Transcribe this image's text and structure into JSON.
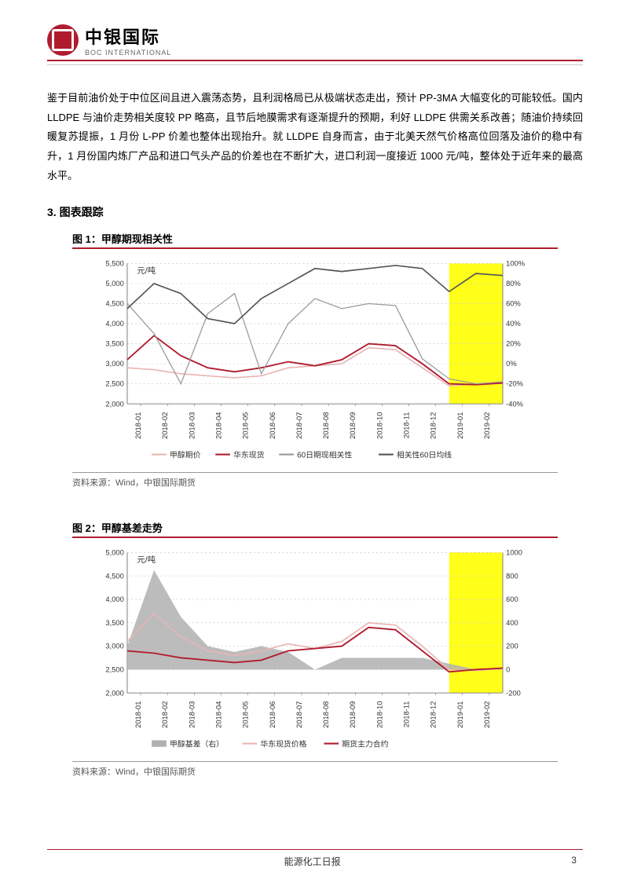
{
  "brand": {
    "name_cn": "中银国际",
    "name_en": "BOC INTERNATIONAL",
    "logo_color": "#b01c2e"
  },
  "paragraph": "鉴于目前油价处于中位区间且进入震荡态势，且利润格局已从极端状态走出，预计 PP-3MA 大幅变化的可能较低。国内 LLDPE 与油价走势相关度较 PP 略高，且节后地膜需求有逐渐提升的预期，利好 LLDPE 供需关系改善；随油价持续回暖复苏提振，1 月份 L-PP 价差也整体出现抬升。就 LLDPE 自身而言，由于北美天然气价格高位回落及油价的稳中有升，1 月份国内炼厂产品和进口气头产品的价差也在不断扩大，进口利润一度接近 1000 元/吨，整体处于近年来的最高水平。",
  "section_heading": "3.  图表跟踪",
  "source_text": "资料来源：Wind，中银国际期货",
  "footer": {
    "report_name": "能源化工日报",
    "page_number": "3"
  },
  "figure1": {
    "title": "图 1：甲醇期现相关性",
    "y_left_label": "元/吨",
    "y_left_ticks": [
      "5,500",
      "5,000",
      "4,500",
      "4,000",
      "3,500",
      "3,000",
      "2,500",
      "2,000"
    ],
    "y_left_min": 2000,
    "y_left_max": 5500,
    "y_right_ticks": [
      "100%",
      "80%",
      "60%",
      "40%",
      "20%",
      "0%",
      "-20%",
      "-40%"
    ],
    "y_right_min": -40,
    "y_right_max": 100,
    "x_labels": [
      "2018-01",
      "2018-02",
      "2018-03",
      "2018-04",
      "2018-05",
      "2018-06",
      "2018-07",
      "2018-08",
      "2018-09",
      "2018-10",
      "2018-11",
      "2018-12",
      "2019-01",
      "2019-02"
    ],
    "highlight_xstart": 12,
    "highlight_xend": 14,
    "highlight_color": "#ffff00",
    "grid_color": "#cccccc",
    "legend": [
      "甲醇期价",
      "华东现货",
      "60日期现相关性",
      "相关性60日均线"
    ],
    "series": {
      "futures": {
        "color": "#e8b5b5",
        "values": [
          2900,
          2850,
          2750,
          2700,
          2650,
          2700,
          2900,
          2950,
          3000,
          3400,
          3350,
          2900,
          2450,
          2500,
          2530
        ]
      },
      "spot": {
        "color": "#b01c2e",
        "values": [
          3100,
          3700,
          3200,
          2900,
          2800,
          2900,
          3050,
          2950,
          3100,
          3500,
          3450,
          3000,
          2500,
          2480,
          2520
        ]
      },
      "corr60": {
        "color": "#999999",
        "values": [
          60,
          30,
          -20,
          50,
          70,
          -10,
          40,
          65,
          55,
          60,
          58,
          5,
          -15,
          -20,
          -18
        ]
      },
      "corr60ma": {
        "color": "#555555",
        "values": [
          55,
          80,
          70,
          45,
          40,
          65,
          80,
          95,
          92,
          95,
          98,
          95,
          72,
          90,
          88
        ]
      }
    }
  },
  "figure2": {
    "title": "图 2：甲醇基差走势",
    "y_left_label": "元/吨",
    "y_left_ticks": [
      "5,000",
      "4,500",
      "4,000",
      "3,500",
      "3,000",
      "2,500",
      "2,000"
    ],
    "y_left_min": 2000,
    "y_left_max": 5000,
    "y_right_ticks": [
      "1000",
      "800",
      "600",
      "400",
      "200",
      "0",
      "-200"
    ],
    "y_right_min": -200,
    "y_right_max": 1000,
    "x_labels": [
      "2018-01",
      "2018-02",
      "2018-03",
      "2018-04",
      "2018-05",
      "2018-06",
      "2018-07",
      "2018-08",
      "2018-09",
      "2018-10",
      "2018-11",
      "2018-12",
      "2019-01",
      "2019-02"
    ],
    "highlight_xstart": 12,
    "highlight_xend": 14,
    "highlight_color": "#ffff00",
    "grid_color": "#cccccc",
    "legend": [
      "甲醇基差（右）",
      "华东现货价格",
      "期货主力合约"
    ],
    "series": {
      "basis": {
        "color": "#b0b0b0",
        "values": [
          200,
          850,
          450,
          200,
          150,
          200,
          150,
          0,
          100,
          100,
          100,
          100,
          50,
          0,
          0
        ]
      },
      "spot": {
        "color": "#e8b5b5",
        "values": [
          3100,
          3700,
          3200,
          2900,
          2800,
          2900,
          3050,
          2950,
          3100,
          3500,
          3450,
          3000,
          2500,
          2480,
          2520
        ]
      },
      "futures": {
        "color": "#b01c2e",
        "values": [
          2900,
          2850,
          2750,
          2700,
          2650,
          2700,
          2900,
          2950,
          3000,
          3400,
          3350,
          2900,
          2450,
          2500,
          2530
        ]
      }
    }
  }
}
